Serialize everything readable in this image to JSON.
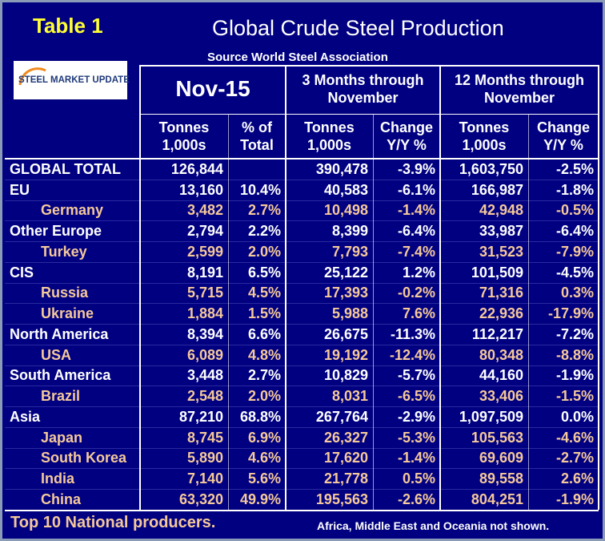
{
  "header": {
    "table_label": "Table 1",
    "title": "Global Crude Steel Production",
    "source": "Source World Steel Association"
  },
  "logo": {
    "text": "STEEL MARKET UPDATE"
  },
  "table": {
    "header_row1": [
      [
        "Nov-15"
      ],
      [
        "3 Months through",
        "November"
      ],
      [
        "12 Months through",
        "November"
      ]
    ],
    "header_row2": [
      [
        "Tonnes",
        "1,000s"
      ],
      [
        "% of",
        "Total"
      ],
      [
        "Tonnes",
        "1,000s"
      ],
      [
        "Change",
        "Y/Y %"
      ],
      [
        "Tonnes",
        "1,000s"
      ],
      [
        "Change",
        "Y/Y %"
      ]
    ],
    "rows": [
      [
        "GLOBAL TOTAL",
        "126,844",
        null,
        "390,478",
        "-3.9%",
        "1,603,750",
        "-2.5%"
      ],
      [
        "EU",
        "13,160",
        "10.4%",
        "40,583",
        "-6.1%",
        "166,987",
        "-1.8%"
      ],
      [
        "Germany",
        "3,482",
        "2.7%",
        "10,498",
        "-1.4%",
        "42,948",
        "-0.5%"
      ],
      [
        "Other Europe",
        "2,794",
        "2.2%",
        "8,399",
        "-6.4%",
        "33,987",
        "-6.4%"
      ],
      [
        "Turkey",
        "2,599",
        "2.0%",
        "7,793",
        "-7.4%",
        "31,523",
        "-7.9%"
      ],
      [
        "CIS",
        "8,191",
        "6.5%",
        "25,122",
        "1.2%",
        "101,509",
        "-4.5%"
      ],
      [
        "Russia",
        "5,715",
        "4.5%",
        "17,393",
        "-0.2%",
        "71,316",
        "0.3%"
      ],
      [
        "Ukraine",
        "1,884",
        "1.5%",
        "5,988",
        "7.6%",
        "22,936",
        "-17.9%"
      ],
      [
        "North America",
        "8,394",
        "6.6%",
        "26,675",
        "-11.3%",
        "112,217",
        "-7.2%"
      ],
      [
        "USA",
        "6,089",
        "4.8%",
        "19,192",
        "-12.4%",
        "80,348",
        "-8.8%"
      ],
      [
        "South America",
        "3,448",
        "2.7%",
        "10,829",
        "-5.7%",
        "44,160",
        "-1.9%"
      ],
      [
        "Brazil",
        "2,548",
        "2.0%",
        "8,031",
        "-6.5%",
        "33,406",
        "-1.5%"
      ],
      [
        "Asia",
        "87,210",
        "68.8%",
        "267,764",
        "-2.9%",
        "1,097,509",
        "0.0%"
      ],
      [
        "Japan",
        "8,745",
        "6.9%",
        "26,327",
        "-5.3%",
        "105,563",
        "-4.6%"
      ],
      [
        "South Korea",
        "5,890",
        "4.6%",
        "17,620",
        "-1.4%",
        "69,609",
        "-2.7%"
      ],
      [
        "India",
        "7,140",
        "5.6%",
        "21,778",
        "0.5%",
        "89,558",
        "2.6%"
      ],
      [
        "China",
        "63,320",
        "49.9%",
        "195,563",
        "-2.6%",
        "804,251",
        "-1.9%"
      ]
    ]
  },
  "footer": {
    "note_left": "Top 10 National producers.",
    "note_right": "Africa, Middle East and Oceania not shown."
  }
}
